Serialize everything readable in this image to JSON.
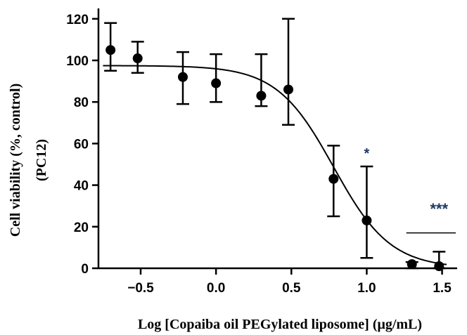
{
  "chart_data": {
    "type": "scatter",
    "xlabel": "Log [Copaiba oil PEGylated liposome] (μg/mL)",
    "ylabel_lines": [
      "Cell viability (%, control)",
      "(PC12)"
    ],
    "xlim": [
      -0.78,
      1.6
    ],
    "ylim": [
      0,
      125
    ],
    "x_ticks": [
      {
        "value": -0.5,
        "label": "−0.5"
      },
      {
        "value": 0.0,
        "label": "0.0"
      },
      {
        "value": 0.5,
        "label": "0.5"
      },
      {
        "value": 1.0,
        "label": "1.0"
      },
      {
        "value": 1.5,
        "label": "1.5"
      }
    ],
    "y_ticks": [
      {
        "value": 0,
        "label": "0"
      },
      {
        "value": 20,
        "label": "20"
      },
      {
        "value": 40,
        "label": "40"
      },
      {
        "value": 60,
        "label": "60"
      },
      {
        "value": 80,
        "label": "80"
      },
      {
        "value": 100,
        "label": "100"
      },
      {
        "value": 120,
        "label": "120"
      }
    ],
    "points": [
      {
        "x": -0.7,
        "y": 105,
        "err_low": 95,
        "err_high": 118
      },
      {
        "x": -0.52,
        "y": 101,
        "err_low": 94,
        "err_high": 109
      },
      {
        "x": -0.22,
        "y": 92,
        "err_low": 79,
        "err_high": 104
      },
      {
        "x": 0.0,
        "y": 89,
        "err_low": 80,
        "err_high": 103
      },
      {
        "x": 0.3,
        "y": 83,
        "err_low": 78,
        "err_high": 103
      },
      {
        "x": 0.48,
        "y": 86,
        "err_low": 69,
        "err_high": 120
      },
      {
        "x": 0.78,
        "y": 43,
        "err_low": 25,
        "err_high": 59
      },
      {
        "x": 1.0,
        "y": 23,
        "err_low": 5,
        "err_high": 49
      },
      {
        "x": 1.3,
        "y": 2,
        "err_low": 0,
        "err_high": 3
      },
      {
        "x": 1.48,
        "y": 1,
        "err_low": 0,
        "err_high": 8
      }
    ],
    "fit_curve": {
      "model": "four-parameter logistic",
      "top": 97.5,
      "bottom": 0,
      "log_ec50": 0.78,
      "hill_slope": -2.3,
      "x_range": [
        -0.75,
        1.53
      ]
    },
    "annotations": [
      {
        "text": "*",
        "x": 1.0,
        "y": 53
      },
      {
        "text": "***",
        "x": 1.48,
        "y": 26,
        "bar_x": [
          1.3,
          1.6
        ],
        "bar_y": 17
      }
    ]
  },
  "colors": {
    "marker": "#000000",
    "significance": "#1f3864"
  }
}
